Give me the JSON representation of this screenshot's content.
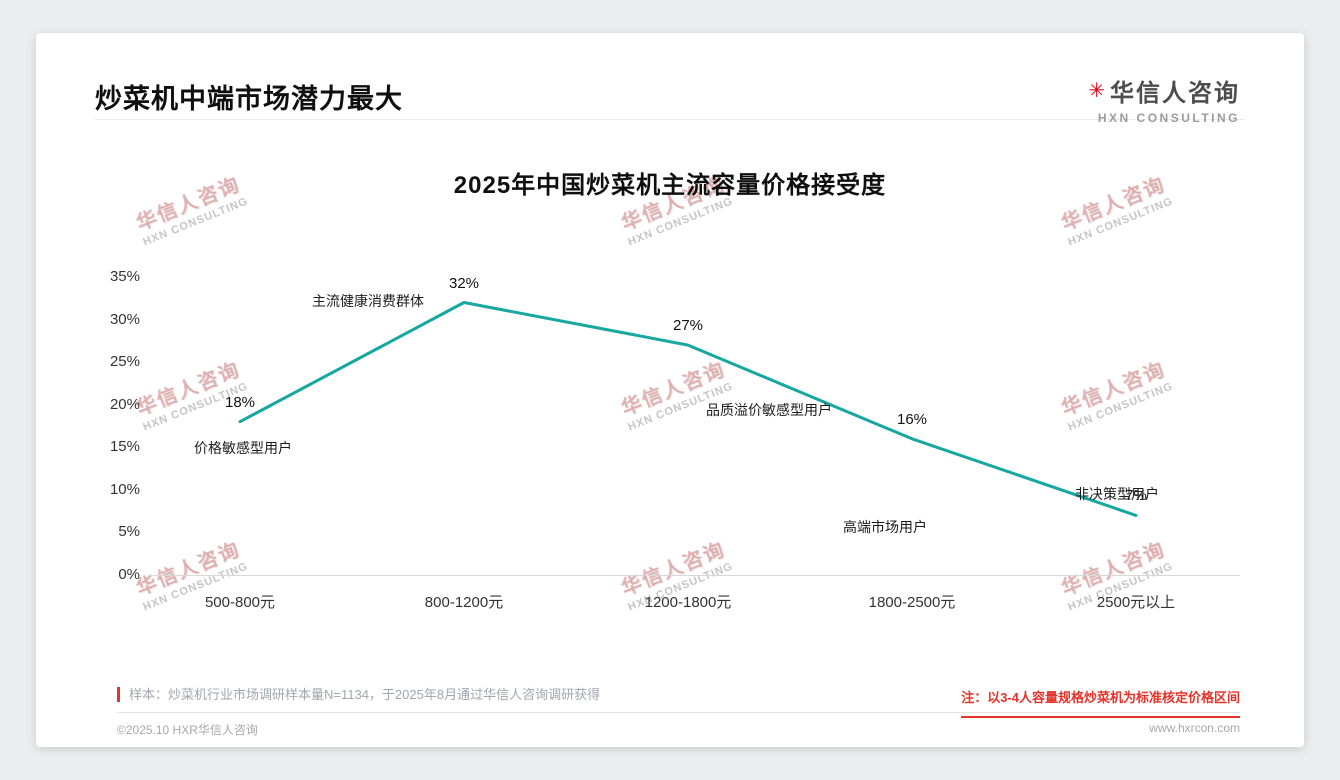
{
  "page": {
    "title": "炒菜机中端市场潜力最大",
    "logo": {
      "cn": "华信人咨询",
      "en": "HXN CONSULTING"
    },
    "watermark": {
      "cn": "华信人咨询",
      "en": "HXN CONSULTING"
    }
  },
  "chart_data": {
    "type": "line",
    "title": "2025年中国炒菜机主流容量价格接受度",
    "categories": [
      "500-800元",
      "800-1200元",
      "1200-1800元",
      "1800-2500元",
      "2500元以上"
    ],
    "values": [
      18,
      32,
      27,
      16,
      7
    ],
    "unit": "%",
    "ylim": [
      0,
      35
    ],
    "yticks": [
      "0%",
      "5%",
      "10%",
      "15%",
      "20%",
      "25%",
      "30%",
      "35%"
    ],
    "grid": "off",
    "legend": "none",
    "line_color": "#16a7a0",
    "annotations": [
      {
        "index": 0,
        "text": "价格敏感型用户"
      },
      {
        "index": 1,
        "text": "主流健康消费群体"
      },
      {
        "index": 2,
        "text": "品质溢价敏感型用户"
      },
      {
        "index": 3,
        "text": "高端市场用户"
      },
      {
        "index": 4,
        "text": "非决策型用户"
      }
    ]
  },
  "footer": {
    "sample_note": "样本：炒菜机行业市场调研样本量N=1134，于2025年8月通过华信人咨询调研获得",
    "price_note": "注：以3-4人容量规格炒菜机为标准核定价格区间",
    "copyright": "©2025.10 HXR华信人咨询",
    "website": "www.hxrcon.com"
  }
}
